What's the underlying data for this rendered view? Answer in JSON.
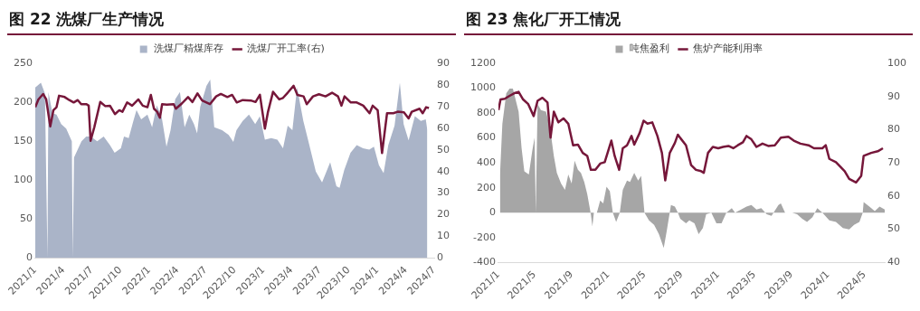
{
  "chart_data": [
    {
      "type": "area",
      "title": "图 22  洗煤厂生产情况",
      "legend": "top",
      "xlim": [
        "2021-01-01",
        "2024-07-01"
      ],
      "xticks": [
        {
          "value": "2021-01-01",
          "label": "2021/1"
        },
        {
          "value": "2021-04-01",
          "label": "2021/4"
        },
        {
          "value": "2021-07-01",
          "label": "2021/7"
        },
        {
          "value": "2021-10-01",
          "label": "2021/10"
        },
        {
          "value": "2022-01-01",
          "label": "2022/1"
        },
        {
          "value": "2022-04-01",
          "label": "2022/4"
        },
        {
          "value": "2022-07-01",
          "label": "2022/7"
        },
        {
          "value": "2022-10-01",
          "label": "2022/10"
        },
        {
          "value": "2023-01-01",
          "label": "2023/1"
        },
        {
          "value": "2023-04-01",
          "label": "2023/4"
        },
        {
          "value": "2023-07-01",
          "label": "2023/7"
        },
        {
          "value": "2023-10-01",
          "label": "2023/10"
        },
        {
          "value": "2024-01-01",
          "label": "2024/1"
        },
        {
          "value": "2024-04-01",
          "label": "2024/4"
        },
        {
          "value": "2024-07-01",
          "label": "2024/7"
        }
      ],
      "ylim": [
        0,
        250
      ],
      "yticks": [
        0,
        50,
        100,
        150,
        200,
        250
      ],
      "y2lim": [
        0,
        90
      ],
      "y2ticks": [
        0,
        10,
        20,
        30,
        40,
        50,
        60,
        70,
        80,
        90
      ],
      "series": [
        {
          "name": "洗煤厂精煤库存",
          "color": "#aab4c8",
          "x": [
            "2021-01-01",
            "2021-01-19",
            "2021-02-01",
            "2021-02-09",
            "2021-02-12",
            "2021-02-25",
            "2021-03-10",
            "2021-03-25",
            "2021-04-10",
            "2021-04-28",
            "2021-05-01",
            "2021-05-05",
            "2021-05-29",
            "2021-06-13",
            "2021-06-28",
            "2021-07-18",
            "2021-08-08",
            "2021-08-28",
            "2021-09-12",
            "2021-10-02",
            "2021-10-12",
            "2021-10-27",
            "2021-11-11",
            "2021-11-21",
            "2021-12-06",
            "2021-12-26",
            "2022-01-10",
            "2022-01-25",
            "2022-02-10",
            "2022-02-25",
            "2022-03-10",
            "2022-03-25",
            "2022-04-09",
            "2022-04-24",
            "2022-05-09",
            "2022-05-24",
            "2022-06-03",
            "2022-06-13",
            "2022-07-03",
            "2022-07-15",
            "2022-07-28",
            "2022-08-22",
            "2022-09-12",
            "2022-09-27",
            "2022-10-07",
            "2022-10-27",
            "2022-11-16",
            "2022-12-06",
            "2022-12-21",
            "2023-01-06",
            "2023-01-26",
            "2023-02-15",
            "2023-03-05",
            "2023-03-20",
            "2023-04-04",
            "2023-04-19",
            "2023-05-09",
            "2023-05-24",
            "2023-06-18",
            "2023-07-08",
            "2023-08-03",
            "2023-08-23",
            "2023-09-02",
            "2023-09-17",
            "2023-10-07",
            "2023-10-27",
            "2023-11-16",
            "2023-12-06",
            "2023-12-21",
            "2024-01-06",
            "2024-01-21",
            "2024-02-05",
            "2024-02-25",
            "2024-03-13",
            "2024-03-25",
            "2024-04-10",
            "2024-04-30",
            "2024-05-19",
            "2024-06-04",
            "2024-06-09"
          ],
          "values": [
            219,
            225,
            211,
            0,
            213,
            186,
            184,
            172,
            166,
            150,
            0,
            129,
            150,
            156,
            156,
            150,
            156,
            145,
            135,
            141,
            156,
            154,
            176,
            190,
            178,
            184,
            168,
            196,
            180,
            143,
            164,
            204,
            213,
            168,
            184,
            172,
            160,
            194,
            221,
            229,
            168,
            164,
            158,
            149,
            164,
            176,
            184,
            172,
            182,
            152,
            154,
            152,
            141,
            170,
            164,
            219,
            176,
            152,
            111,
            97,
            123,
            92,
            90,
            113,
            135,
            145,
            141,
            139,
            143,
            119,
            109,
            145,
            170,
            225,
            172,
            151,
            182,
            176,
            178,
            164
          ]
        },
        {
          "name": "洗煤厂开工率(右)",
          "type": "line",
          "axis": "y2",
          "color": "#76173a",
          "x": [
            "2021-01-01",
            "2021-01-11",
            "2021-01-26",
            "2021-02-05",
            "2021-02-18",
            "2021-02-28",
            "2021-03-10",
            "2021-03-18",
            "2021-04-05",
            "2021-04-20",
            "2021-05-04",
            "2021-05-17",
            "2021-05-28",
            "2021-06-14",
            "2021-06-21",
            "2021-06-27",
            "2021-07-09",
            "2021-07-28",
            "2021-08-13",
            "2021-08-28",
            "2021-09-13",
            "2021-09-27",
            "2021-10-07",
            "2021-10-22",
            "2021-11-07",
            "2021-11-27",
            "2021-12-11",
            "2021-12-26",
            "2022-01-06",
            "2022-01-16",
            "2022-01-26",
            "2022-02-04",
            "2022-02-11",
            "2022-02-26",
            "2022-03-20",
            "2022-03-27",
            "2022-04-15",
            "2022-05-05",
            "2022-05-19",
            "2022-06-04",
            "2022-06-19",
            "2022-07-14",
            "2022-08-03",
            "2022-08-18",
            "2022-09-08",
            "2022-09-23",
            "2022-10-08",
            "2022-10-27",
            "2022-11-22",
            "2022-12-07",
            "2022-12-21",
            "2023-01-06",
            "2023-01-16",
            "2023-02-01",
            "2023-02-21",
            "2023-03-05",
            "2023-03-20",
            "2023-04-08",
            "2023-04-20",
            "2023-05-10",
            "2023-05-20",
            "2023-06-09",
            "2023-06-28",
            "2023-07-19",
            "2023-08-09",
            "2023-08-28",
            "2023-09-08",
            "2023-09-18",
            "2023-10-08",
            "2023-10-27",
            "2023-11-17",
            "2023-12-07",
            "2023-12-17",
            "2024-01-02",
            "2024-01-16",
            "2024-02-01",
            "2024-02-21",
            "2024-03-06",
            "2024-03-26",
            "2024-04-10",
            "2024-04-20",
            "2024-05-15",
            "2024-05-25",
            "2024-06-05",
            "2024-06-14"
          ],
          "values": [
            69.7,
            73.3,
            75.8,
            73.3,
            60.8,
            68.3,
            69.7,
            75,
            74.4,
            73,
            71.9,
            73,
            71.1,
            71.1,
            70.4,
            54.2,
            60.5,
            72.1,
            70.2,
            70.4,
            66.5,
            68.3,
            67.6,
            71.9,
            70.4,
            73.3,
            70.4,
            69.7,
            75.4,
            69,
            67.6,
            64.8,
            71.1,
            70.9,
            71.1,
            69,
            71.4,
            74.4,
            72.1,
            76.1,
            72.8,
            71.1,
            74.7,
            75.8,
            74.4,
            75.4,
            71.9,
            73,
            72.8,
            72.1,
            75.4,
            59.8,
            67.6,
            76.8,
            73.3,
            74,
            76.4,
            79.6,
            75.4,
            74.7,
            71.1,
            74.7,
            75.7,
            74.7,
            76.4,
            74.7,
            70.4,
            74.7,
            71.9,
            71.9,
            70.4,
            66.9,
            70.4,
            68.3,
            48.5,
            66.9,
            66.9,
            67.6,
            67.3,
            64.5,
            67.6,
            69,
            66.9,
            69.7,
            69.3
          ]
        }
      ]
    },
    {
      "type": "area",
      "title": "图 23  焦化厂开工情况",
      "legend": "top",
      "xlim": [
        "2021-01-01",
        "2024-07-07"
      ],
      "xticks": [
        {
          "value": "2021-01-01",
          "label": "2021/1"
        },
        {
          "value": "2021-05-01",
          "label": "2021/5"
        },
        {
          "value": "2021-09-01",
          "label": "2021/9"
        },
        {
          "value": "2022-01-01",
          "label": "2022/1"
        },
        {
          "value": "2022-05-01",
          "label": "2022/5"
        },
        {
          "value": "2022-09-01",
          "label": "2022/9"
        },
        {
          "value": "2023-01-01",
          "label": "2023/1"
        },
        {
          "value": "2023-05-01",
          "label": "2023/5"
        },
        {
          "value": "2023-09-01",
          "label": "2023/9"
        },
        {
          "value": "2024-01-01",
          "label": "2024/1"
        },
        {
          "value": "2024-05-01",
          "label": "2024/5"
        }
      ],
      "ylim": [
        -400,
        1200
      ],
      "yticks": [
        -400,
        -200,
        0,
        200,
        400,
        600,
        800,
        1000,
        1200
      ],
      "y2lim": [
        40,
        100
      ],
      "y2ticks": [
        40,
        50,
        60,
        70,
        80,
        90,
        100
      ],
      "series": [
        {
          "name": "吨焦盈利",
          "color": "#a6a6a6",
          "x": [
            "2021-01-06",
            "2021-01-14",
            "2021-01-27",
            "2021-02-07",
            "2021-02-18",
            "2021-02-28",
            "2021-03-09",
            "2021-03-19",
            "2021-03-28",
            "2021-04-12",
            "2021-04-23",
            "2021-05-01",
            "2021-05-05",
            "2021-05-11",
            "2021-05-22",
            "2021-06-08",
            "2021-06-21",
            "2021-07-04",
            "2021-07-14",
            "2021-07-28",
            "2021-08-10",
            "2021-08-21",
            "2021-09-01",
            "2021-09-11",
            "2021-09-22",
            "2021-10-02",
            "2021-10-13",
            "2021-10-23",
            "2021-11-04",
            "2021-11-09",
            "2021-11-14",
            "2021-11-24",
            "2021-12-05",
            "2021-12-15",
            "2021-12-26",
            "2022-01-06",
            "2022-01-16",
            "2022-01-27",
            "2022-02-08",
            "2022-02-18",
            "2022-03-04",
            "2022-03-14",
            "2022-03-28",
            "2022-04-10",
            "2022-04-20",
            "2022-05-01",
            "2022-05-16",
            "2022-06-02",
            "2022-06-18",
            "2022-07-04",
            "2022-07-14",
            "2022-07-28",
            "2022-08-10",
            "2022-08-20",
            "2022-08-28",
            "2022-09-16",
            "2022-09-27",
            "2022-10-14",
            "2022-10-28",
            "2022-11-11",
            "2022-11-22",
            "2022-12-09",
            "2022-12-26",
            "2023-01-12",
            "2023-01-28",
            "2023-02-15",
            "2023-02-26",
            "2023-03-18",
            "2023-04-05",
            "2023-04-21",
            "2023-05-08",
            "2023-05-24",
            "2023-06-11",
            "2023-06-27",
            "2023-07-20",
            "2023-07-28",
            "2023-08-11",
            "2023-09-04",
            "2023-09-20",
            "2023-10-07",
            "2023-10-23",
            "2023-11-10",
            "2023-11-26",
            "2023-12-13",
            "2024-01-05",
            "2024-01-27",
            "2024-02-19",
            "2024-03-11",
            "2024-03-27",
            "2024-04-14",
            "2024-04-25",
            "2024-04-28",
            "2024-05-17",
            "2024-06-04",
            "2024-06-20",
            "2024-07-07"
          ],
          "values": [
            295,
            713,
            959,
            996,
            996,
            898,
            811,
            516,
            332,
            307,
            492,
            602,
            0,
            873,
            824,
            811,
            689,
            455,
            320,
            234,
            184,
            307,
            234,
            418,
            344,
            320,
            246,
            148,
            -12,
            -111,
            0,
            0,
            98,
            74,
            209,
            172,
            0,
            -74,
            0,
            184,
            258,
            246,
            320,
            258,
            295,
            0,
            -61,
            -98,
            -172,
            -283,
            -148,
            61,
            49,
            0,
            -49,
            -86,
            -61,
            -86,
            -172,
            -123,
            -12,
            0,
            -86,
            -86,
            0,
            37,
            0,
            25,
            49,
            61,
            25,
            37,
            -12,
            -25,
            61,
            74,
            0,
            0,
            -12,
            -49,
            -74,
            -37,
            37,
            0,
            -61,
            -74,
            -123,
            -135,
            -98,
            -74,
            0,
            86,
            49,
            12,
            49,
            25
          ]
        },
        {
          "name": "焦炉产能利用率",
          "type": "line",
          "axis": "y2",
          "color": "#76173a",
          "x": [
            "2021-01-01",
            "2021-01-08",
            "2021-01-22",
            "2021-02-07",
            "2021-02-23",
            "2021-03-09",
            "2021-03-24",
            "2021-04-10",
            "2021-04-28",
            "2021-05-11",
            "2021-05-27",
            "2021-06-13",
            "2021-06-23",
            "2021-07-04",
            "2021-07-19",
            "2021-08-05",
            "2021-08-21",
            "2021-09-06",
            "2021-09-22",
            "2021-10-08",
            "2021-10-23",
            "2021-11-04",
            "2021-11-19",
            "2021-12-05",
            "2021-12-20",
            "2022-01-11",
            "2022-01-22",
            "2022-02-06",
            "2022-02-18",
            "2022-03-04",
            "2022-03-19",
            "2022-03-28",
            "2022-04-15",
            "2022-04-28",
            "2022-05-11",
            "2022-05-27",
            "2022-06-13",
            "2022-06-28",
            "2022-07-09",
            "2022-07-24",
            "2022-08-10",
            "2022-08-20",
            "2022-08-28",
            "2022-09-16",
            "2022-10-03",
            "2022-10-19",
            "2022-11-05",
            "2022-11-14",
            "2022-11-28",
            "2022-12-14",
            "2023-01-01",
            "2023-01-17",
            "2023-02-04",
            "2023-02-20",
            "2023-03-07",
            "2023-03-24",
            "2023-04-05",
            "2023-04-21",
            "2023-05-08",
            "2023-05-28",
            "2023-06-16",
            "2023-07-08",
            "2023-07-28",
            "2023-08-22",
            "2023-09-09",
            "2023-10-01",
            "2023-10-28",
            "2023-11-15",
            "2023-12-13",
            "2023-12-24",
            "2024-01-05",
            "2024-01-27",
            "2024-02-25",
            "2024-03-11",
            "2024-04-03",
            "2024-04-20",
            "2024-04-28",
            "2024-05-23",
            "2024-06-14",
            "2024-07-01"
          ],
          "values": [
            85.9,
            89.1,
            89.3,
            90.2,
            91,
            91.4,
            89.1,
            87.7,
            84.1,
            88.7,
            89.6,
            88.2,
            77.6,
            85.4,
            82.2,
            83.4,
            81.8,
            75.3,
            75.5,
            73,
            72.1,
            67.9,
            67.9,
            69.8,
            70.2,
            76.7,
            72.1,
            67.9,
            74.4,
            75.3,
            78.1,
            75.5,
            79,
            82.7,
            81.8,
            82.2,
            78.1,
            73,
            64.7,
            73,
            76,
            78.5,
            77.5,
            75.3,
            69.3,
            67.9,
            67.5,
            67,
            73,
            74.8,
            74.4,
            74.8,
            75.1,
            74.4,
            75.3,
            76.2,
            78.1,
            77.1,
            74.8,
            75.8,
            75.1,
            75.3,
            77.6,
            77.9,
            76.7,
            75.8,
            75.3,
            74.4,
            74.4,
            75.3,
            71.2,
            70.2,
            67.5,
            65.2,
            64.1,
            66.1,
            72.1,
            73,
            73.5,
            74.4
          ]
        }
      ]
    }
  ]
}
